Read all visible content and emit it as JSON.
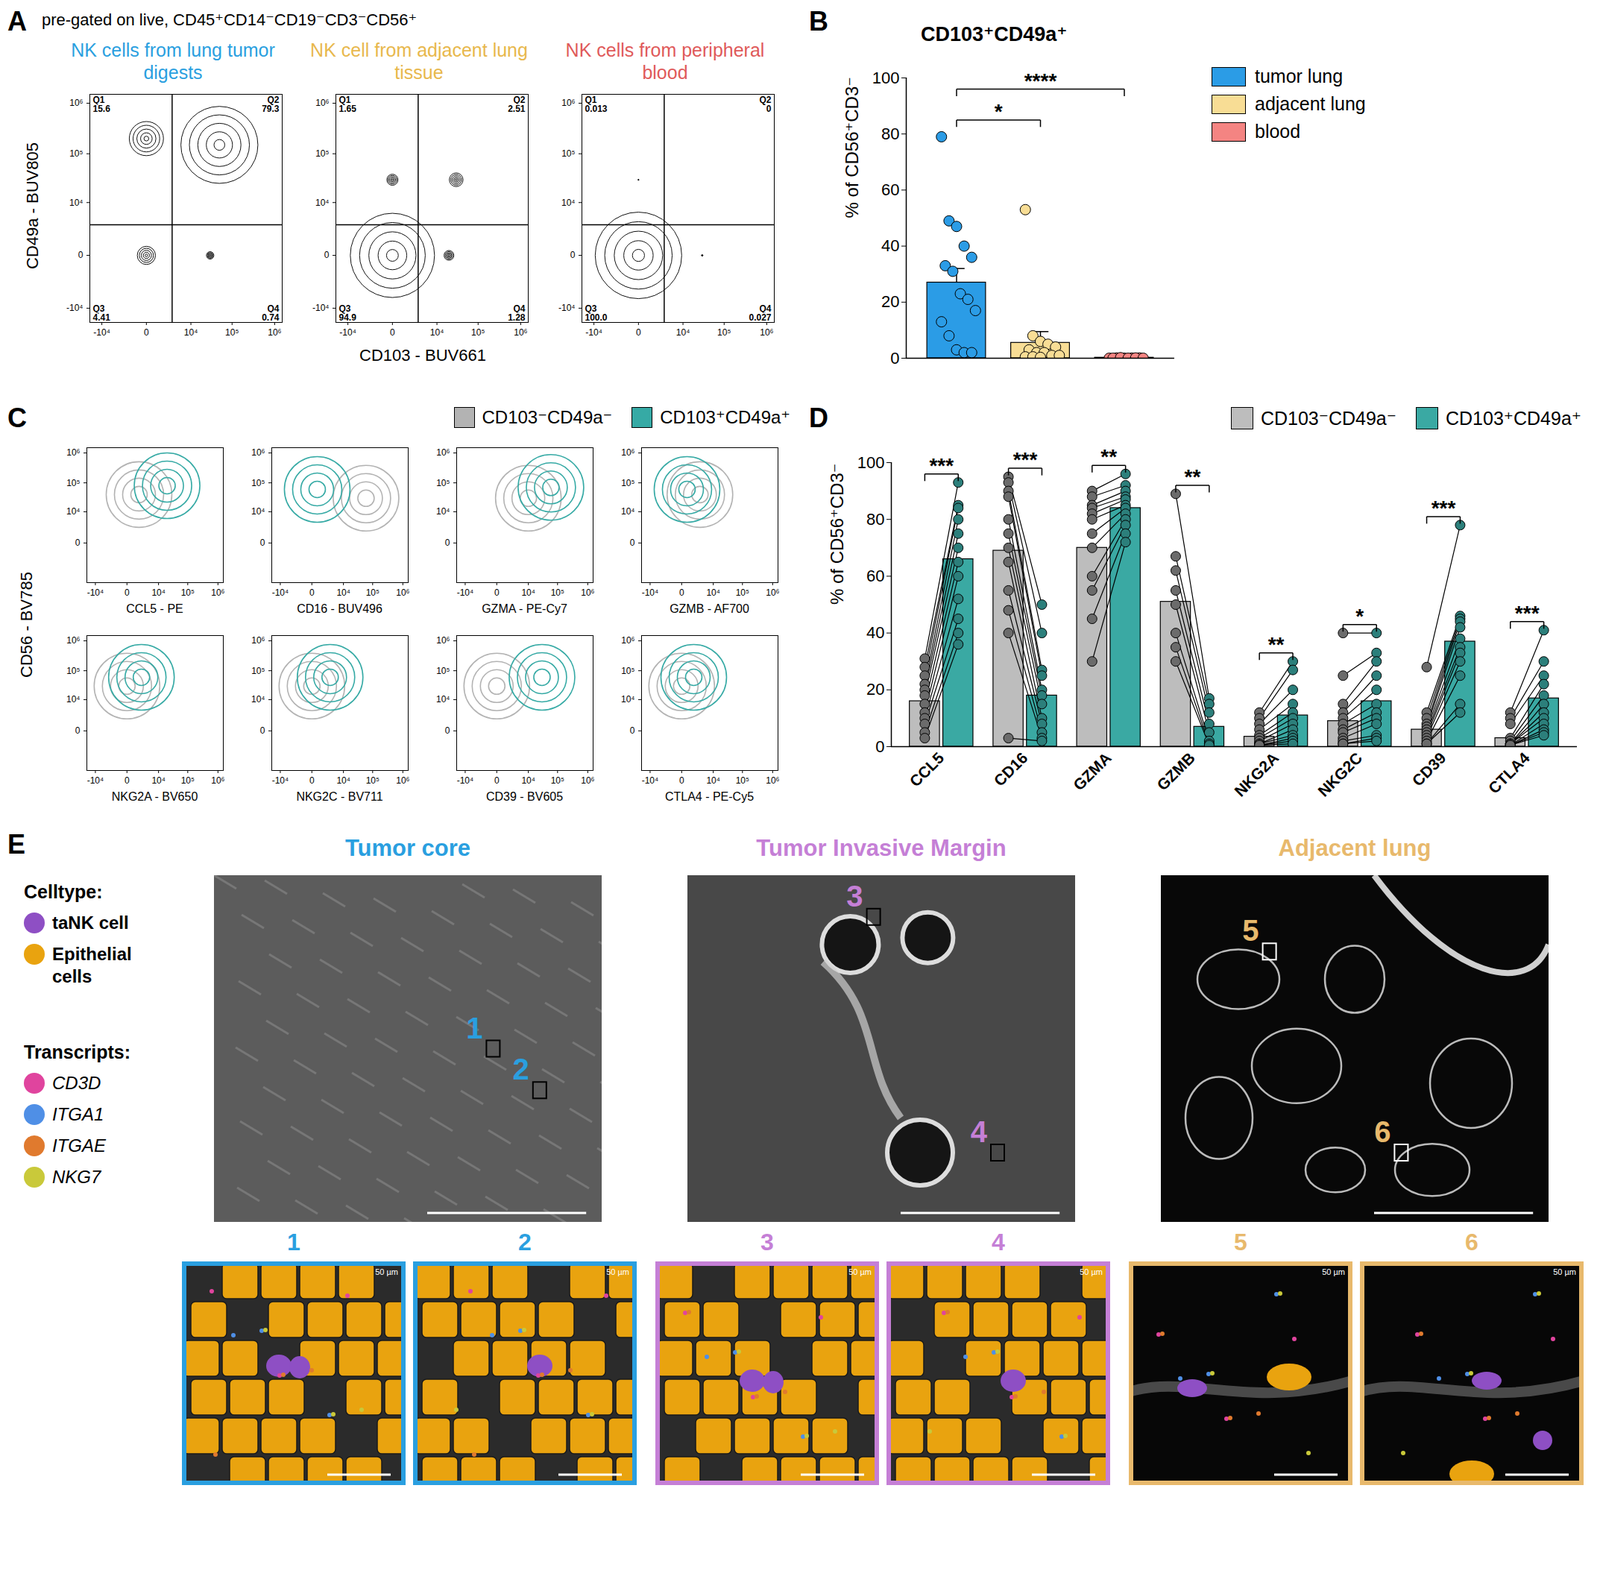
{
  "chart_data": [
    {
      "panel": "A",
      "type": "flow",
      "subtitle": "pre-gated on live, CD45⁺CD14⁻CD19⁻CD3⁻CD56⁺",
      "x_label": "CD103 - BUV661",
      "y_label": "CD49a - BUV805",
      "log": true,
      "xlim": [
        -20000,
        1500000
      ],
      "ylim": [
        -20000,
        1500000
      ],
      "xticks": [
        {
          "value": -10000,
          "label": "-10⁴"
        },
        0,
        {
          "value": 10000,
          "label": "10⁴"
        },
        {
          "value": 100000,
          "label": "10⁵"
        },
        {
          "value": 1000000,
          "label": "10⁶"
        }
      ],
      "yticks": [
        {
          "value": -10000,
          "label": "-10⁴"
        },
        0,
        {
          "value": 10000,
          "label": "10⁴"
        },
        {
          "value": 100000,
          "label": "10⁵"
        },
        {
          "value": 1000000,
          "label": "10⁶"
        }
      ],
      "gate": {
        "x": 3000,
        "y": 3000
      },
      "plots": [
        {
          "title": "NK cells from lung tumor digests",
          "color": "#2a9fe0",
          "quadrants": [
            {
              "name": "Q1",
              "value": 15.6,
              "x": 0,
              "y": 200000
            },
            {
              "name": "Q2",
              "value": 79.3,
              "x": 50000,
              "y": 150000
            },
            {
              "name": "Q3",
              "value": 4.41,
              "x": 0,
              "y": 0
            },
            {
              "name": "Q4",
              "value": 0.74,
              "x": 30000,
              "y": 0
            }
          ]
        },
        {
          "title": "NK cell from adjacent lung tissue",
          "color": "#e8b84d",
          "quadrants": [
            {
              "name": "Q1",
              "value": 1.65,
              "x": 0,
              "y": 30000
            },
            {
              "name": "Q2",
              "value": 2.51,
              "x": 30000,
              "y": 30000
            },
            {
              "name": "Q3",
              "value": 94.9,
              "x": 0,
              "y": 0
            },
            {
              "name": "Q4",
              "value": 1.28,
              "x": 20000,
              "y": 0
            }
          ]
        },
        {
          "title": "NK cells from peripheral blood",
          "color": "#e05a5a",
          "quadrants": [
            {
              "name": "Q1",
              "value": 0.013,
              "x": 0,
              "y": 30000
            },
            {
              "name": "Q2",
              "value": 0,
              "x": 30000,
              "y": 30000
            },
            {
              "name": "Q3",
              "value": 100,
              "label": "100.0",
              "x": 0,
              "y": 0
            },
            {
              "name": "Q4",
              "value": 0.027,
              "x": 30000,
              "y": 0
            }
          ]
        }
      ]
    },
    {
      "panel": "B",
      "type": "bar",
      "title": "CD103⁺CD49a⁺",
      "y_label": "% of CD56⁺CD3⁻",
      "categories": [
        "tumor lung",
        "adjacent lung",
        "blood"
      ],
      "colors": [
        "#2b9ce6",
        "#f8dd95",
        "#f48482"
      ],
      "values": [
        27,
        5.5,
        0.2
      ],
      "errors": [
        5,
        4,
        0.1
      ],
      "points": [
        [
          79,
          49,
          47,
          40,
          36,
          33,
          31,
          23,
          21,
          17,
          13,
          8,
          3,
          2,
          2
        ],
        [
          53,
          8,
          6,
          5,
          4,
          3,
          2,
          2,
          1,
          1,
          0.5,
          0.5,
          0.3
        ],
        [
          0,
          0.1,
          0,
          0.05,
          0.1,
          0,
          0.2,
          0,
          0.1,
          0
        ]
      ],
      "ylim": [
        0,
        100
      ],
      "yticks": [
        0,
        20,
        40,
        60,
        80,
        100
      ],
      "tick_labels": "y",
      "legend": "top-right",
      "comparisons": [
        {
          "from": "tumor lung",
          "to": "adjacent lung",
          "label": "*"
        },
        {
          "from": "tumor lung",
          "to": "blood",
          "label": "****"
        }
      ]
    },
    {
      "panel": "C",
      "type": "flow_overlay",
      "y_label": "CD56 - BV785",
      "log": true,
      "xlim": [
        -20000,
        1500000
      ],
      "ylim": [
        -20000,
        1500000
      ],
      "xticks": [
        {
          "value": -10000,
          "label": "-10⁴"
        },
        0,
        {
          "value": 10000,
          "label": "10⁴"
        },
        {
          "value": 100000,
          "label": "10⁵"
        },
        {
          "value": 1000000,
          "label": "10⁶"
        }
      ],
      "yticks": [
        0,
        {
          "value": 10000,
          "label": "10⁴"
        },
        {
          "value": 100000,
          "label": "10⁵"
        },
        {
          "value": 1000000,
          "label": "10⁶"
        }
      ],
      "series": [
        {
          "name": "CD103⁻CD49a⁻",
          "color": "#b3b3b3"
        },
        {
          "name": "CD103⁺CD49a⁺",
          "color": "#36aaa5"
        }
      ],
      "legend": "top-right",
      "plots": [
        {
          "x_label": "CCL5 - PE",
          "populations": [
            {
              "x": 1500,
              "y": 40000
            },
            {
              "x": 20000,
              "y": 80000
            }
          ]
        },
        {
          "x_label": "CD16 - BUV496",
          "populations": [
            {
              "x": 60000,
              "y": 30000
            },
            {
              "x": 500,
              "y": 60000
            }
          ]
        },
        {
          "x_label": "GZMA - PE-Cy7",
          "populations": [
            {
              "x": 10000,
              "y": 30000
            },
            {
              "x": 60000,
              "y": 70000
            }
          ]
        },
        {
          "x_label": "GZMB - AF700",
          "populations": [
            {
              "x": 3000,
              "y": 40000
            },
            {
              "x": 500,
              "y": 60000
            }
          ]
        },
        {
          "x_label": "NKG2A - BV650",
          "populations": [
            {
              "x": 0,
              "y": 30000
            },
            {
              "x": 2000,
              "y": 60000
            }
          ]
        },
        {
          "x_label": "NKG2C - BV711",
          "populations": [
            {
              "x": 0,
              "y": 30000
            },
            {
              "x": 3000,
              "y": 60000
            }
          ]
        },
        {
          "x_label": "CD39 - BV605",
          "populations": [
            {
              "x": 0,
              "y": 30000
            },
            {
              "x": 30000,
              "y": 60000
            }
          ]
        },
        {
          "x_label": "CTLA4 - PE-Cy5",
          "populations": [
            {
              "x": 0,
              "y": 30000
            },
            {
              "x": 1500,
              "y": 60000
            }
          ]
        }
      ]
    },
    {
      "panel": "D",
      "type": "bar",
      "y_label": "% of CD56⁺CD3⁻",
      "categories": [
        "CCL5",
        "CD16",
        "GZMA",
        "GZMB",
        "NKG2A",
        "NKG2C",
        "CD39",
        "CTLA4"
      ],
      "series": [
        {
          "name": "CD103⁻CD49a⁻",
          "color": "#bdbdbd",
          "values": [
            16,
            69,
            70,
            51,
            3.5,
            9,
            6,
            3
          ],
          "points": [
            [
              31,
              28,
              25,
              22,
              20,
              18,
              15,
              12,
              10,
              8,
              5,
              3
            ],
            [
              95,
              93,
              90,
              88,
              80,
              75,
              70,
              65,
              55,
              48,
              40,
              3
            ],
            [
              90,
              88,
              85,
              84,
              82,
              80,
              75,
              70,
              60,
              55,
              45,
              30
            ],
            [
              89,
              67,
              62,
              55,
              50,
              40,
              35,
              30
            ],
            [
              12,
              10,
              8,
              6,
              4,
              3,
              2,
              1,
              1,
              0.5,
              0.5,
              0.5
            ],
            [
              40,
              25,
              15,
              12,
              10,
              8,
              6,
              5,
              3,
              2,
              1,
              1
            ],
            [
              28,
              12,
              10,
              8,
              7,
              6,
              5,
              4,
              3,
              2,
              1,
              1
            ],
            [
              12,
              10,
              8,
              3,
              2,
              1,
              1,
              1,
              0.5,
              0.5,
              0.5,
              0.5
            ]
          ]
        },
        {
          "name": "CD103⁺CD49a⁺",
          "color": "#3aa9a3",
          "values": [
            66,
            18,
            84,
            7,
            11,
            16,
            37,
            17
          ],
          "points": [
            [
              93,
              85,
              84,
              80,
              75,
              70,
              65,
              60,
              52,
              45,
              40,
              36
            ],
            [
              50,
              40,
              27,
              25,
              20,
              18,
              15,
              10,
              8,
              5,
              3,
              2
            ],
            [
              96,
              92,
              90,
              88,
              87,
              85,
              84,
              82,
              80,
              78,
              75,
              72
            ],
            [
              17,
              15,
              12,
              8,
              5,
              2,
              1,
              0.5
            ],
            [
              30,
              27,
              20,
              15,
              12,
              10,
              8,
              6,
              4,
              3,
              2,
              1
            ],
            [
              40,
              33,
              30,
              25,
              20,
              15,
              12,
              10,
              8,
              4,
              3,
              2
            ],
            [
              78,
              46,
              45,
              44,
              42,
              38,
              35,
              33,
              30,
              25,
              15,
              12
            ],
            [
              41,
              30,
              25,
              22,
              18,
              15,
              12,
              10,
              8,
              6,
              5,
              4
            ]
          ]
        }
      ],
      "significance": [
        "***",
        "***",
        "**",
        "**",
        "**",
        "*",
        "***",
        "***"
      ],
      "ylim": [
        0,
        100
      ],
      "yticks": [
        0,
        20,
        40,
        60,
        80,
        100
      ],
      "legend": "top-right"
    }
  ],
  "image_panels": {
    "panel": "E",
    "legend": {
      "groups": [
        {
          "title": "Celltype:",
          "items": [
            {
              "name": "taNK cell",
              "color": "#8e4fc4"
            },
            {
              "name": "Epithelial cells",
              "color": "#e9a30f"
            }
          ]
        },
        {
          "title": "Transcripts:",
          "items": [
            {
              "name": "CD3D",
              "color": "#e0449e"
            },
            {
              "name": "ITGA1",
              "color": "#4f8fe6"
            },
            {
              "name": "ITGAE",
              "color": "#e07a2e"
            },
            {
              "name": "NKG7",
              "color": "#c9c93a"
            }
          ]
        }
      ]
    },
    "regions": [
      {
        "title": "Tumor core",
        "color": "#2a9fe0",
        "insets": [
          "1",
          "2"
        ]
      },
      {
        "title": "Tumor Invasive Margin",
        "color": "#c57fd6",
        "insets": [
          "3",
          "4"
        ]
      },
      {
        "title": "Adjacent lung",
        "color": "#e8b96c",
        "insets": [
          "5",
          "6"
        ]
      }
    ],
    "scale_label": "50 µm"
  }
}
